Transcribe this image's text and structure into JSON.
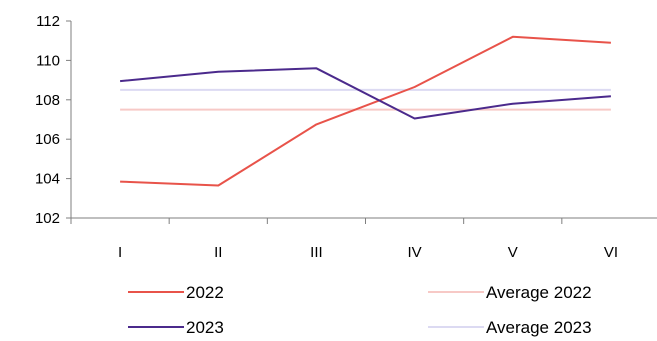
{
  "chart_data": {
    "type": "line",
    "categories": [
      "I",
      "II",
      "III",
      "IV",
      "V",
      "VI"
    ],
    "ylim": [
      102,
      112
    ],
    "yticks": [
      102,
      104,
      106,
      108,
      110,
      112
    ],
    "grid": false,
    "legend_position": "bottom",
    "series": [
      {
        "name": "2022",
        "color": "#e8534a",
        "values": [
          103.85,
          103.65,
          106.75,
          108.65,
          111.2,
          110.9
        ]
      },
      {
        "name": "2023",
        "color": "#4b2a8c",
        "values": [
          108.95,
          109.42,
          109.6,
          107.05,
          107.8,
          108.18
        ]
      },
      {
        "name": "Average 2022",
        "color": "#f7c9c6",
        "values": [
          107.5,
          107.5,
          107.5,
          107.5,
          107.5,
          107.5
        ]
      },
      {
        "name": "Average 2023",
        "color": "#dcdaf2",
        "values": [
          108.5,
          108.5,
          108.5,
          108.5,
          108.5,
          108.5
        ]
      }
    ]
  }
}
